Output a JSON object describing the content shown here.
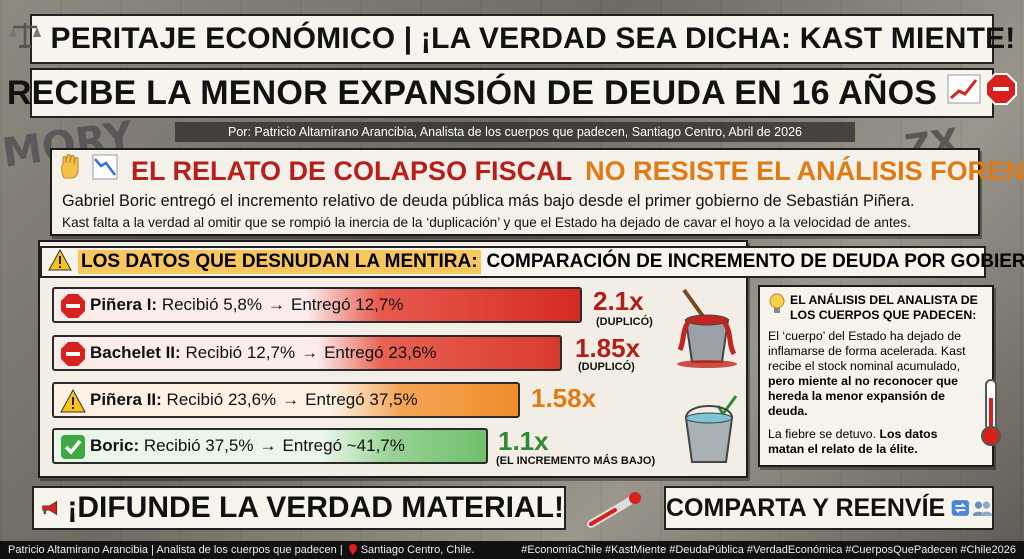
{
  "header": {
    "title_line1": "PERITAJE ECONÓMICO | ¡LA VERDAD SEA DICHA: KAST MIENTE!",
    "title_line2": "RECIBE LA MENOR EXPANSIÓN DE DEUDA EN 16 AÑOS",
    "byline": "Por: Patricio Altamirano Arancibia, Analista de los cuerpos que padecen, Santiago Centro, Abril de 2026"
  },
  "intro": {
    "headline_red": "EL RELATO DE COLAPSO FISCAL",
    "headline_orange": "NO RESISTE EL ANÁLISIS FORENSE",
    "text1": "Gabriel Boric entregó el incremento relativo de deuda pública más bajo desde el primer gobierno de Sebastián Piñera.",
    "text2": "Kast falta a la verdad al omitir que se rompió la inercia de la ‘duplicación’ y que el Estado ha dejado de cavar el hoyo a la velocidad de antes."
  },
  "comparison": {
    "label_highlight": "LOS DATOS QUE DESNUDAN LA MENTIRA:",
    "label_rest": "COMPARACIÓN DE INCREMENTO DE DEUDA POR GOBIERNO",
    "rows": [
      {
        "gov": "Piñera I:",
        "received": "Recibió 5,8%",
        "delivered": "Entregó 12,7%",
        "multiplier": "2.1x",
        "note": "(DUPLICÓ)",
        "color": "#d42a24",
        "mult_color": "#b31e18"
      },
      {
        "gov": "Bachelet II:",
        "received": "Recibió 12,7%",
        "delivered": "Entregó 23,6%",
        "multiplier": "1.85x",
        "note": "(DUPLICÓ)",
        "color": "#d83a2e",
        "mult_color": "#b31e18"
      },
      {
        "gov": "Piñera II:",
        "received": "Recibió 23,6%",
        "delivered": "Entregó 37,5%",
        "multiplier": "1.58x",
        "note": "",
        "color": "#ef8c2a",
        "mult_color": "#e07a12"
      },
      {
        "gov": "Boric:",
        "received": "Recibió 37,5%",
        "delivered": "Entregó ~41,7%",
        "multiplier": "1.1x",
        "note": "(EL INCREMENTO MÁS BAJO)",
        "color": "#6fbf6b",
        "mult_color": "#2e8a35"
      }
    ],
    "arrow": "→"
  },
  "analysis": {
    "title": "EL ANÁLISIS DEL ANALISTA DE LOS CUERPOS QUE PADECEN:",
    "body_plain": "El ‘cuerpo’ del Estado ha dejado de inflamarse de forma acelerada. Kast recibe el stock nominal acumulado,",
    "body_bold": "pero miente al no reconocer que hereda la menor expansión de deuda.",
    "footer_plain": "La fiebre se detuvo.",
    "footer_bold": "Los datos matan el relato de la élite."
  },
  "cta": {
    "left": "¡DIFUNDE LA VERDAD MATERIAL!",
    "right": "COMPARTA Y REENVÍE"
  },
  "footer": {
    "left": "Patricio Altamirano Arancibia | Analista de los cuerpos que padecen |",
    "location": "Santiago Centro, Chile.",
    "hashtags": "#EconomíaChile #KastMiente #DeudaPública #VerdadEconómica #CuerposQuePadecen #Chile2026"
  }
}
